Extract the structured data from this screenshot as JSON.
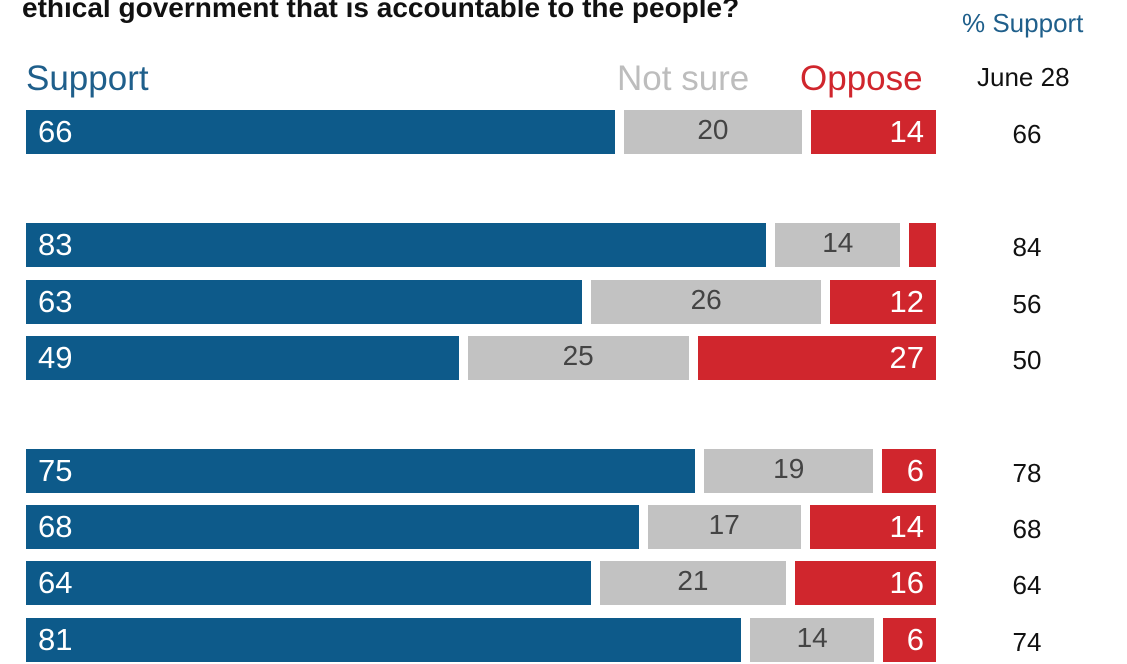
{
  "chart_data": {
    "type": "bar",
    "orientation": "horizontal",
    "stacked": true,
    "title": "ethical government that is accountable to the people?",
    "side_column_header": "% Support",
    "side_column_subheader": "June 28",
    "legend": [
      "Support",
      "Not sure",
      "Oppose"
    ],
    "series": [
      {
        "name": "Support",
        "values": [
          66,
          83,
          63,
          49,
          75,
          68,
          64,
          81
        ]
      },
      {
        "name": "Not sure",
        "values": [
          20,
          14,
          26,
          25,
          19,
          17,
          21,
          14
        ]
      },
      {
        "name": "Oppose",
        "values": [
          14,
          null,
          12,
          27,
          6,
          14,
          16,
          6
        ]
      }
    ],
    "side_values": [
      66,
      84,
      56,
      50,
      78,
      68,
      64,
      74
    ],
    "xlim": [
      0,
      100
    ],
    "colors": {
      "support": "#0d5a8a",
      "not_sure": "#c2c2c2",
      "oppose": "#d0262d"
    }
  }
}
